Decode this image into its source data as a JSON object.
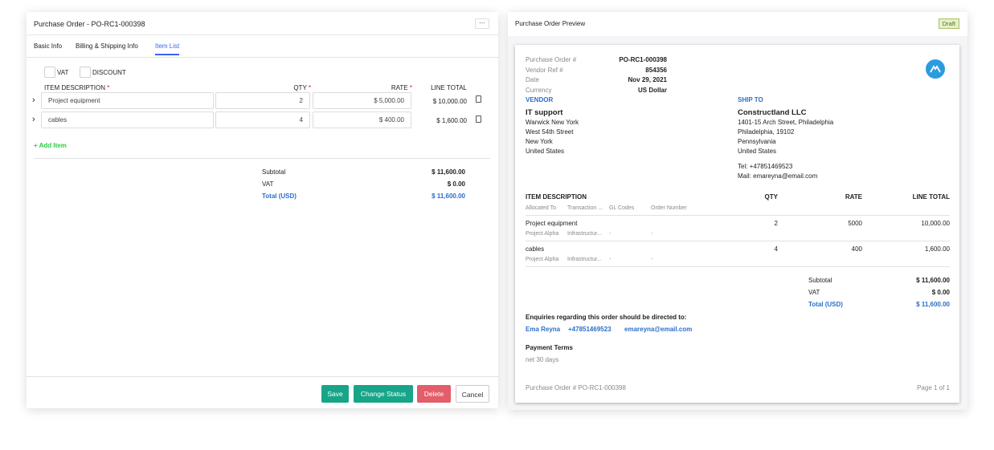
{
  "form": {
    "title": "Purchase Order - PO-RC1-000398",
    "more_label": "···",
    "tabs": [
      {
        "label": "Basic Info"
      },
      {
        "label": "Billing & Shipping Info"
      },
      {
        "label": "Item List",
        "active": true
      }
    ],
    "checkboxes": [
      {
        "label": "VAT",
        "checked": false
      },
      {
        "label": "DISCOUNT",
        "checked": false
      }
    ],
    "columns": {
      "description": "ITEM DESCRIPTION",
      "qty": "QTY",
      "rate": "RATE",
      "line_total": "LINE TOTAL",
      "required_mark": "*"
    },
    "items": [
      {
        "description": "Project equipment",
        "qty": "2",
        "rate": "$ 5,000.00",
        "line_total": "$ 10,000.00"
      },
      {
        "description": "cables",
        "qty": "4",
        "rate": "$ 400.00",
        "line_total": "$ 1,600.00"
      }
    ],
    "add_item_label": "+ Add Item",
    "totals": {
      "subtotal_label": "Subtotal",
      "subtotal": "$ 11,600.00",
      "vat_label": "VAT",
      "vat": "$ 0.00",
      "total_label": "Total (USD)",
      "total": "$ 11,600.00"
    },
    "buttons": {
      "save": "Save",
      "change_status": "Change Status",
      "delete": "Delete",
      "cancel": "Cancel"
    }
  },
  "preview": {
    "title": "Purchase Order Preview",
    "status_badge": "Draft",
    "meta": [
      {
        "label": "Purchase Order #",
        "value": "PO-RC1-000398"
      },
      {
        "label": "Vendor Ref #",
        "value": "854356"
      },
      {
        "label": "Date",
        "value": "Nov 29, 2021"
      },
      {
        "label": "Currency",
        "value": "US Dollar"
      }
    ],
    "vendor": {
      "heading": "VENDOR",
      "name": "IT support",
      "lines": [
        "Warwick New York",
        "West 54th Street",
        "New York",
        "United States"
      ]
    },
    "ship_to": {
      "heading": "SHIP TO",
      "name": "Constructland LLC",
      "lines": [
        "1401-15 Arch Street, Philadelphia",
        "Philadelphia, 19102",
        "Pennsylvania",
        "United States"
      ],
      "tel": "Tel: +47851469523",
      "mail": "Mail: emareyna@email.com"
    },
    "columns": {
      "description": "ITEM DESCRIPTION",
      "qty": "QTY",
      "rate": "RATE",
      "line_total": "LINE TOTAL",
      "allocated_to": "Allocated To",
      "transaction": "Transaction ...",
      "gl_codes": "GL Codes",
      "order_number": "Order Number"
    },
    "items": [
      {
        "description": "Project equipment",
        "qty": "2",
        "rate": "5000",
        "line_total": "10,000.00",
        "allocated_to": "Project Alpha",
        "transaction": "Infrastructur...",
        "gl_codes": "-",
        "order_number": "-"
      },
      {
        "description": "cables",
        "qty": "4",
        "rate": "400",
        "line_total": "1,600.00",
        "allocated_to": "Project Alpha",
        "transaction": "Infrastructur...",
        "gl_codes": "-",
        "order_number": "-"
      }
    ],
    "totals": {
      "subtotal_label": "Subtotal",
      "subtotal": "$ 11,600.00",
      "vat_label": "VAT",
      "vat": "$ 0.00",
      "total_label": "Total (USD)",
      "total": "$ 11,600.00"
    },
    "enquiries": {
      "heading": "Enquiries regarding this order should be directed to:",
      "name": "Ema Reyna",
      "phone": "+47851469523",
      "email": "emareyna@email.com"
    },
    "payment_terms": {
      "heading": "Payment Terms",
      "value": "net 30 days"
    },
    "footer": {
      "po": "Purchase Order # PO-RC1-000398",
      "page": "Page 1 of 1"
    }
  },
  "colors": {
    "accent": "#3d63f0",
    "save": "#17a589",
    "delete": "#e35d6a",
    "add": "#2ecc40",
    "doc_blue": "#2a6fc9",
    "logo": "#2b9be0"
  }
}
